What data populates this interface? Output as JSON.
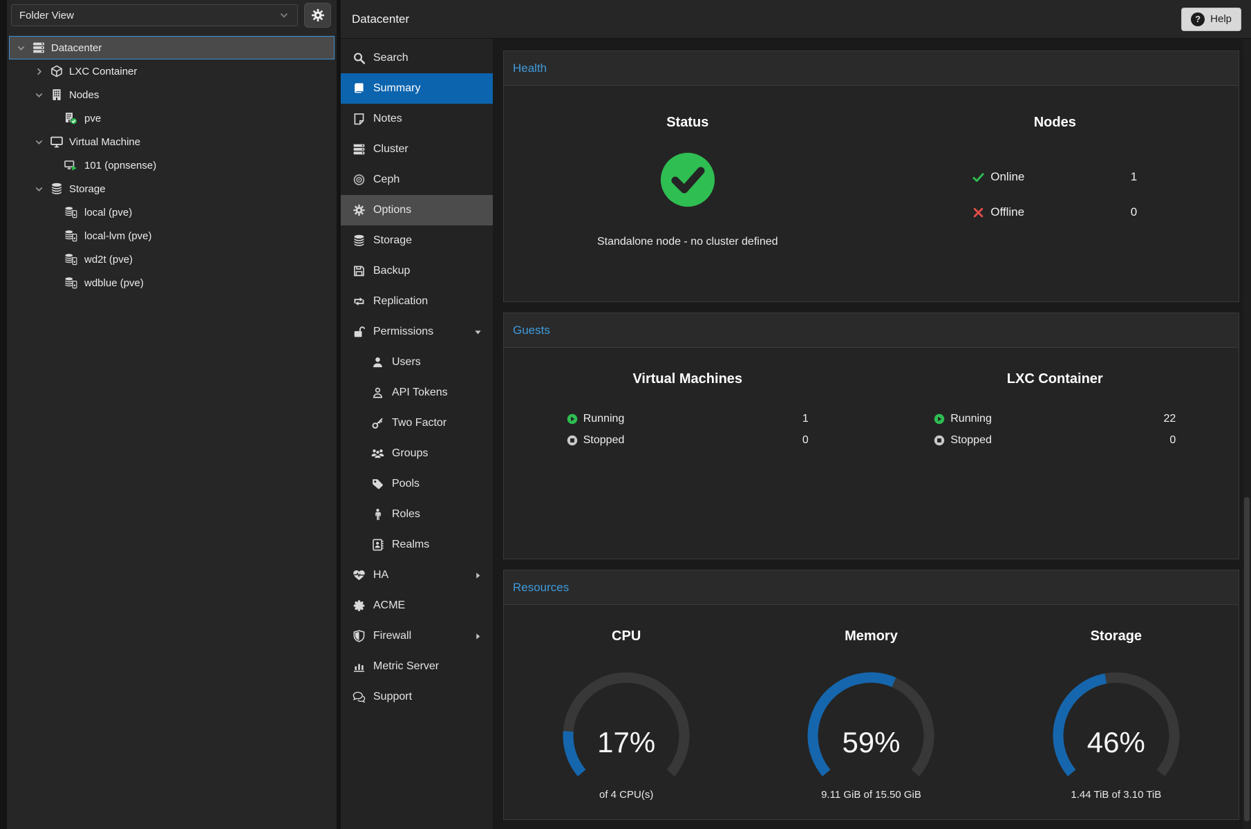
{
  "colors": {
    "accent_blue": "#1566ad",
    "link_blue": "#3f9bdc",
    "ok_green": "#2fbe52",
    "err_red": "#e14c48",
    "selection_blue": "#0c64ae"
  },
  "left_panel": {
    "view_selector": {
      "value": "Folder View",
      "chevron_icon": "chevron-down"
    },
    "settings_icon": "gear",
    "tree": [
      {
        "label": "Datacenter",
        "level": 0,
        "icon": "server",
        "expander": "expanded",
        "selected": true
      },
      {
        "label": "LXC Container",
        "level": 1,
        "icon": "cube",
        "expander": "collapsed"
      },
      {
        "label": "Nodes",
        "level": 1,
        "icon": "building",
        "expander": "expanded"
      },
      {
        "label": "pve",
        "level": 2,
        "icon": "building-check"
      },
      {
        "label": "Virtual Machine",
        "level": 1,
        "icon": "desktop",
        "expander": "expanded"
      },
      {
        "label": "101 (opnsense)",
        "level": 2,
        "icon": "desktop-play"
      },
      {
        "label": "Storage",
        "level": 1,
        "icon": "database",
        "expander": "expanded"
      },
      {
        "label": "local (pve)",
        "level": 2,
        "icon": "database-drive"
      },
      {
        "label": "local-lvm (pve)",
        "level": 2,
        "icon": "database-drive"
      },
      {
        "label": "wd2t (pve)",
        "level": 2,
        "icon": "database-drive"
      },
      {
        "label": "wdblue (pve)",
        "level": 2,
        "icon": "database-drive"
      }
    ]
  },
  "header": {
    "title": "Datacenter",
    "help": {
      "label": "Help",
      "icon": "question-circle",
      "icon_glyph": "?"
    }
  },
  "menu": {
    "selected": "Summary",
    "items": [
      {
        "label": "Search",
        "icon": "search"
      },
      {
        "label": "Summary",
        "icon": "book",
        "selected": true
      },
      {
        "label": "Notes",
        "icon": "note"
      },
      {
        "label": "Cluster",
        "icon": "cluster"
      },
      {
        "label": "Ceph",
        "icon": "ceph"
      },
      {
        "label": "Options",
        "icon": "gear",
        "hovered": true
      },
      {
        "label": "Storage",
        "icon": "database"
      },
      {
        "label": "Backup",
        "icon": "floppy"
      },
      {
        "label": "Replication",
        "icon": "retweet"
      },
      {
        "label": "Permissions",
        "icon": "unlock",
        "expander": "down"
      },
      {
        "label": "Users",
        "icon": "user",
        "indented": true
      },
      {
        "label": "API Tokens",
        "icon": "user-outline",
        "indented": true
      },
      {
        "label": "Two Factor",
        "icon": "key",
        "indented": true
      },
      {
        "label": "Groups",
        "icon": "users",
        "indented": true
      },
      {
        "label": "Pools",
        "icon": "tag",
        "indented": true
      },
      {
        "label": "Roles",
        "icon": "male",
        "indented": true
      },
      {
        "label": "Realms",
        "icon": "address-book",
        "indented": true
      },
      {
        "label": "HA",
        "icon": "heartbeat",
        "expander": "right"
      },
      {
        "label": "ACME",
        "icon": "certificate"
      },
      {
        "label": "Firewall",
        "icon": "shield",
        "expander": "right"
      },
      {
        "label": "Metric Server",
        "icon": "bar-chart"
      },
      {
        "label": "Support",
        "icon": "comments"
      }
    ]
  },
  "health": {
    "title": "Health",
    "status": {
      "heading": "Status",
      "state_icon": "check-circle",
      "message": "Standalone node - no cluster defined"
    },
    "nodes": {
      "heading": "Nodes",
      "rows": [
        {
          "label": "Online",
          "value": "1",
          "icon": "check",
          "state": "ok"
        },
        {
          "label": "Offline",
          "value": "0",
          "icon": "cross",
          "state": "error"
        }
      ]
    }
  },
  "guests": {
    "title": "Guests",
    "groups": [
      {
        "heading": "Virtual Machines",
        "rows": [
          {
            "label": "Running",
            "value": "1",
            "icon": "play-circle"
          },
          {
            "label": "Stopped",
            "value": "0",
            "icon": "stop-circle"
          }
        ]
      },
      {
        "heading": "LXC Container",
        "rows": [
          {
            "label": "Running",
            "value": "22",
            "icon": "play-circle"
          },
          {
            "label": "Stopped",
            "value": "0",
            "icon": "stop-circle"
          }
        ]
      }
    ]
  },
  "resources": {
    "title": "Resources",
    "gauges": [
      {
        "heading": "CPU",
        "percent": 17,
        "display": "17%",
        "sublabel": "of 4 CPU(s)"
      },
      {
        "heading": "Memory",
        "percent": 59,
        "display": "59%",
        "sublabel": "9.11 GiB of 15.50 GiB"
      },
      {
        "heading": "Storage",
        "percent": 46,
        "display": "46%",
        "sublabel": "1.44 TiB of 3.10 TiB"
      }
    ]
  }
}
